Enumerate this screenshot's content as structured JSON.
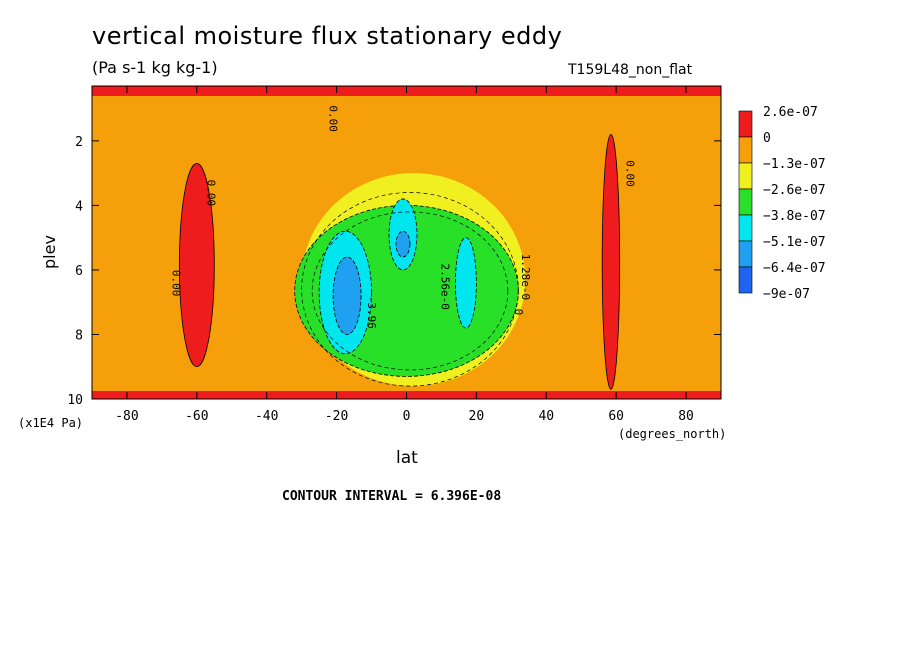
{
  "chart_data": {
    "type": "heatmap",
    "title": "vertical moisture flux stationary eddy",
    "units": "(Pa s-1 kg kg-1)",
    "run_label": "T159L48_non_flat",
    "xlabel": "lat",
    "x_units": "(degrees_north)",
    "ylabel": "plev",
    "y_scale_label": "(x1E4 Pa)",
    "contour_interval": "CONTOUR INTERVAL = 6.396E-08",
    "xlim": [
      -90,
      90
    ],
    "ylim": [
      10,
      0.3
    ],
    "x_ticks": [
      -80,
      -60,
      -40,
      -20,
      0,
      20,
      40,
      60,
      80
    ],
    "y_ticks": [
      2,
      4,
      6,
      8,
      10
    ],
    "legend": [
      {
        "label": "2.6e-07",
        "color": "#ee1c1c"
      },
      {
        "label": "0",
        "color": "#f5a00a"
      },
      {
        "label": "−1.3e-07",
        "color": "#f0f020"
      },
      {
        "label": "−2.6e-07",
        "color": "#28e028"
      },
      {
        "label": "−3.8e-07",
        "color": "#00e6ee"
      },
      {
        "label": "−5.1e-07",
        "color": "#20a0f0"
      },
      {
        "label": "−6.4e-07",
        "color": "#1e64f0"
      },
      {
        "label": "−9e-07",
        "color": "#1e64f0"
      }
    ],
    "contour_labels": [
      {
        "text": "0.00",
        "lat": -22,
        "plev": 0.9
      },
      {
        "text": "0.00",
        "lat": -57,
        "plev": 3.2
      },
      {
        "text": "0.00",
        "lat": -67,
        "plev": 6.0
      },
      {
        "text": "0.00",
        "lat": 63,
        "plev": 2.6
      },
      {
        "text": "2.56e-0",
        "lat": 10,
        "plev": 5.8
      },
      {
        "text": "1.28e-0",
        "lat": 33,
        "plev": 5.5
      },
      {
        "text": "0",
        "lat": 31,
        "plev": 7.2
      },
      {
        "text": "-3.96",
        "lat": -11,
        "plev": 6.8
      }
    ],
    "regions": [
      {
        "cls": 0,
        "lat_min": -65,
        "lat_max": -55,
        "plev_min": 2.7,
        "plev_max": 9.0
      },
      {
        "cls": 0,
        "lat_min": 56,
        "lat_max": 61,
        "plev_min": 1.8,
        "plev_max": 9.7
      },
      {
        "cls": 3,
        "lat_min": -32,
        "lat_max": 32,
        "plev_min": 4.0,
        "plev_max": 9.3
      },
      {
        "cls": 4,
        "lat_min": -25,
        "lat_max": -10,
        "plev_min": 4.8,
        "plev_max": 8.6
      },
      {
        "cls": 5,
        "lat_min": -21,
        "lat_max": -13,
        "plev_min": 5.6,
        "plev_max": 8.0
      },
      {
        "cls": 4,
        "lat_min": -5,
        "lat_max": 3,
        "plev_min": 3.8,
        "plev_max": 6.0
      },
      {
        "cls": 5,
        "lat_min": -3,
        "lat_max": 1,
        "plev_min": 4.8,
        "plev_max": 5.6
      },
      {
        "cls": 4,
        "lat_min": 14,
        "lat_max": 20,
        "plev_min": 5.0,
        "plev_max": 7.8
      }
    ]
  }
}
